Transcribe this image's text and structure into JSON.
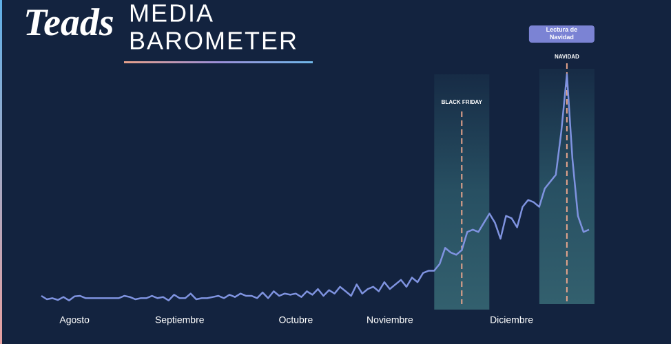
{
  "chart_data": {
    "type": "line",
    "logo": "Teads",
    "title": [
      "MEDIA",
      "BAROMETER"
    ],
    "categories": [
      null,
      null,
      null,
      null,
      null,
      null,
      "Agosto",
      null,
      null,
      null,
      null,
      null,
      null,
      null,
      null,
      null,
      null,
      null,
      null,
      null,
      null,
      null,
      null,
      null,
      null,
      "Septiembre",
      null,
      null,
      null,
      null,
      null,
      null,
      null,
      null,
      null,
      null,
      null,
      null,
      null,
      null,
      null,
      null,
      null,
      null,
      null,
      null,
      "Octubre",
      null,
      null,
      null,
      null,
      null,
      null,
      null,
      null,
      null,
      null,
      null,
      null,
      null,
      null,
      null,
      null,
      "Noviembre",
      null,
      null,
      null,
      null,
      null,
      null,
      null,
      null,
      null,
      null,
      null,
      null,
      null,
      null,
      null,
      null,
      null,
      null,
      null,
      null,
      null,
      "Diciembre",
      null,
      null,
      null,
      null,
      null,
      null,
      null,
      null,
      null,
      null,
      null,
      null,
      null,
      null
    ],
    "series": [
      {
        "color": "#7f93e0",
        "values": [
          3,
          1.5,
          2,
          1.2,
          2.5,
          1,
          2.8,
          3,
          2,
          2,
          2,
          2,
          2,
          2,
          2,
          3,
          2.5,
          1.5,
          2,
          2,
          3,
          2,
          2.5,
          1,
          3.5,
          2,
          2,
          4,
          1.5,
          2,
          2,
          2.5,
          3,
          2,
          3.5,
          2.5,
          4,
          3,
          3,
          2,
          4.5,
          2,
          5,
          3,
          4,
          3.5,
          4,
          2.5,
          5,
          3.5,
          6,
          3,
          5.5,
          4,
          7,
          5,
          3,
          8,
          4,
          6,
          7,
          5,
          9,
          6,
          8,
          10,
          7,
          11,
          9,
          13,
          14,
          14,
          17,
          24,
          22,
          21,
          23,
          31,
          32,
          31,
          35,
          39,
          35,
          28,
          38,
          37,
          33,
          42,
          45,
          44,
          42,
          50,
          53,
          56,
          75,
          100,
          63,
          38,
          31,
          32
        ]
      }
    ],
    "ylim": [
      0,
      100
    ],
    "annotations": [
      {
        "label": "BLACK FRIDAY",
        "x": 76
      },
      {
        "label": "NAVIDAD",
        "x": 95,
        "note": "Lectura de Navidad"
      }
    ]
  }
}
